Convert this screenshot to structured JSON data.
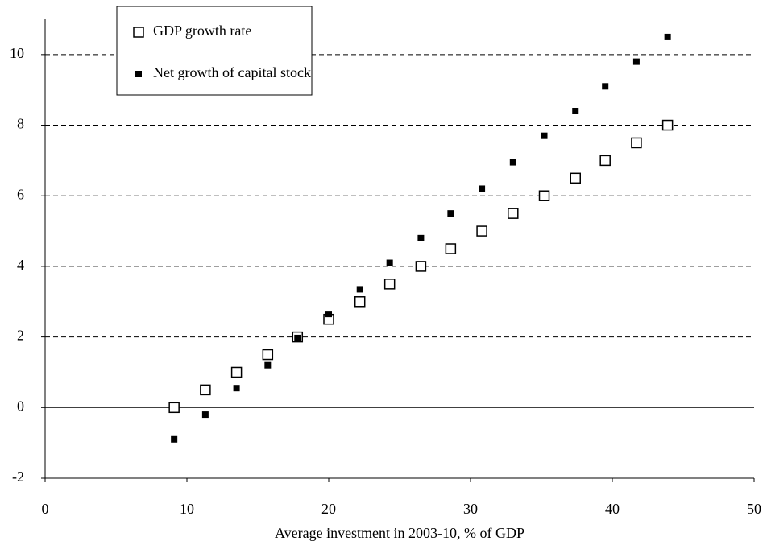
{
  "chart_data": {
    "type": "scatter",
    "xlabel": "Average investment in 2003-10, % of GDP",
    "x": [
      9.1,
      11.3,
      13.5,
      15.7,
      17.8,
      20.0,
      22.2,
      24.3,
      26.5,
      28.6,
      30.8,
      33.0,
      35.2,
      37.4,
      39.5,
      41.7,
      43.9
    ],
    "series": [
      {
        "name": "GDP growth rate",
        "color": "#000000",
        "marker": "square-open",
        "values": [
          0,
          0.5,
          1,
          1.5,
          2,
          2.5,
          3,
          3.5,
          4,
          4.5,
          5,
          5.5,
          6,
          6.5,
          7,
          7.5,
          8
        ]
      },
      {
        "name": "Net growth of capital stock",
        "color": "#000000",
        "marker": "square-filled",
        "values": [
          -0.9,
          -0.2,
          0.55,
          1.2,
          1.97,
          2.65,
          3.35,
          4.1,
          4.8,
          5.5,
          6.2,
          6.95,
          7.7,
          8.4,
          9.1,
          9.8,
          10.5
        ]
      }
    ],
    "xlim": [
      0,
      50
    ],
    "xticks": [
      0,
      10,
      20,
      30,
      40,
      50
    ],
    "ylim": [
      -2,
      11
    ],
    "yticks": [
      -2,
      0,
      2,
      4,
      6,
      8,
      10
    ],
    "grid": true,
    "legend": "top-left"
  }
}
